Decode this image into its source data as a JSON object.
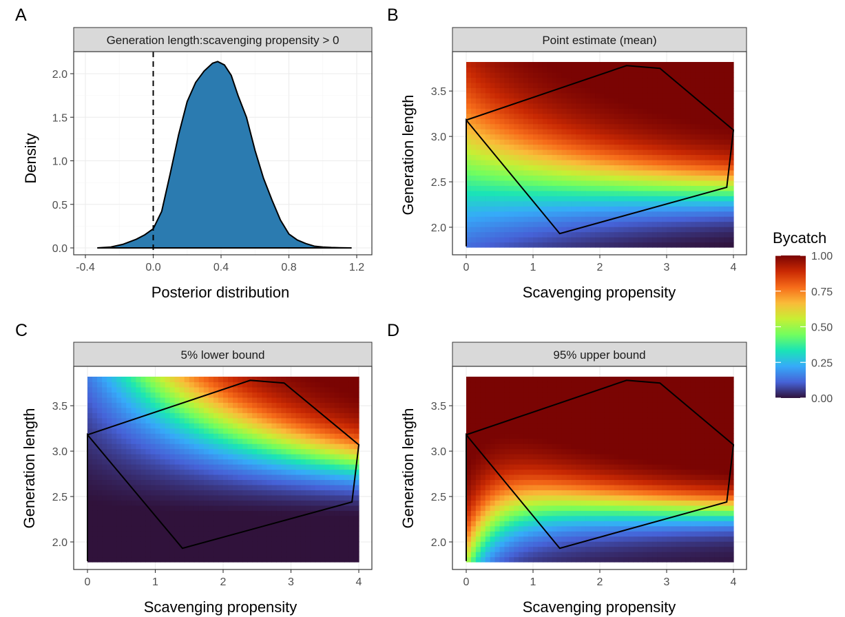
{
  "panels": {
    "A": {
      "letter": "A",
      "strip": "Generation length:scavenging propensity > 0",
      "xlabel": "Posterior distribution",
      "ylabel": "Density",
      "xticks": [
        "-0.4",
        "0.0",
        "0.4",
        "0.8",
        "1.2"
      ],
      "yticks": [
        "0.0",
        "0.5",
        "1.0",
        "1.5",
        "2.0"
      ]
    },
    "B": {
      "letter": "B",
      "strip": "Point estimate (mean)",
      "xlabel": "Scavenging propensity",
      "ylabel": "Generation length",
      "xticks": [
        "0",
        "1",
        "2",
        "3",
        "4"
      ],
      "yticks": [
        "2.0",
        "2.5",
        "3.0",
        "3.5"
      ]
    },
    "C": {
      "letter": "C",
      "strip": "5% lower bound",
      "xlabel": "Scavenging propensity",
      "ylabel": "Generation length",
      "xticks": [
        "0",
        "1",
        "2",
        "3",
        "4"
      ],
      "yticks": [
        "2.0",
        "2.5",
        "3.0",
        "3.5"
      ]
    },
    "D": {
      "letter": "D",
      "strip": "95% upper bound",
      "xlabel": "Scavenging propensity",
      "ylabel": "Generation length",
      "xticks": [
        "0",
        "1",
        "2",
        "3",
        "4"
      ],
      "yticks": [
        "2.0",
        "2.5",
        "3.0",
        "3.5"
      ]
    }
  },
  "legend": {
    "title": "Bycatch",
    "ticks": [
      "1.00",
      "0.75",
      "0.50",
      "0.25",
      "0.00"
    ]
  },
  "chart_data": [
    {
      "panel": "A",
      "type": "area",
      "title": "Generation length:scavenging propensity > 0",
      "xlabel": "Posterior distribution",
      "ylabel": "Density",
      "xlim": [
        -0.4,
        1.2
      ],
      "ylim": [
        0,
        2.2
      ],
      "reference_line_x": 0,
      "fill_color": "#2b7bb0",
      "x": [
        -0.33,
        -0.25,
        -0.18,
        -0.1,
        -0.05,
        0.0,
        0.05,
        0.1,
        0.15,
        0.2,
        0.25,
        0.3,
        0.35,
        0.38,
        0.42,
        0.46,
        0.5,
        0.55,
        0.6,
        0.65,
        0.7,
        0.75,
        0.8,
        0.85,
        0.9,
        0.95,
        1.0,
        1.05,
        1.1,
        1.17
      ],
      "y": [
        0.0,
        0.01,
        0.04,
        0.1,
        0.15,
        0.22,
        0.42,
        0.85,
        1.3,
        1.68,
        1.9,
        2.03,
        2.12,
        2.14,
        2.1,
        1.98,
        1.75,
        1.5,
        1.12,
        0.8,
        0.55,
        0.32,
        0.16,
        0.09,
        0.05,
        0.02,
        0.01,
        0.005,
        0.002,
        0.0
      ]
    },
    {
      "panel": "B",
      "type": "heatmap",
      "title": "Point estimate (mean)",
      "xlabel": "Scavenging propensity",
      "ylabel": "Generation length",
      "xlim": [
        0,
        4
      ],
      "ylim": [
        1.78,
        3.82
      ],
      "color_scale": "Bycatch 0.00-1.00",
      "hull": {
        "x": [
          0.0,
          0.0,
          1.4,
          3.9,
          4.0,
          2.9,
          2.4,
          0.0
        ],
        "y": [
          1.79,
          3.18,
          1.93,
          2.44,
          3.07,
          3.75,
          3.78,
          3.18
        ]
      }
    },
    {
      "panel": "C",
      "type": "heatmap",
      "title": "5% lower bound",
      "xlabel": "Scavenging propensity",
      "ylabel": "Generation length",
      "xlim": [
        0,
        4
      ],
      "ylim": [
        1.78,
        3.82
      ],
      "color_scale": "Bycatch 0.00-1.00",
      "hull": {
        "x": [
          0.0,
          0.0,
          1.4,
          3.9,
          4.0,
          2.9,
          2.4,
          0.0
        ],
        "y": [
          1.79,
          3.18,
          1.93,
          2.44,
          3.07,
          3.75,
          3.78,
          3.18
        ]
      }
    },
    {
      "panel": "D",
      "type": "heatmap",
      "title": "95% upper bound",
      "xlabel": "Scavenging propensity",
      "ylabel": "Generation length",
      "xlim": [
        0,
        4
      ],
      "ylim": [
        1.78,
        3.82
      ],
      "color_scale": "Bycatch 0.00-1.00",
      "hull": {
        "x": [
          0.0,
          0.0,
          1.4,
          3.9,
          4.0,
          2.9,
          2.4,
          0.0
        ],
        "y": [
          1.79,
          3.18,
          1.93,
          2.44,
          3.07,
          3.75,
          3.78,
          3.18
        ]
      }
    }
  ],
  "colors": {
    "strip_fill": "#d9d9d9",
    "grid": "#ebebeb",
    "density_fill": "#2b7bb0",
    "scale": [
      "#30123b",
      "#4662d7",
      "#36aaf9",
      "#1ae4b6",
      "#72fe5e",
      "#c7ef34",
      "#fabb39",
      "#f66b19",
      "#c92903",
      "#7a0403"
    ]
  }
}
